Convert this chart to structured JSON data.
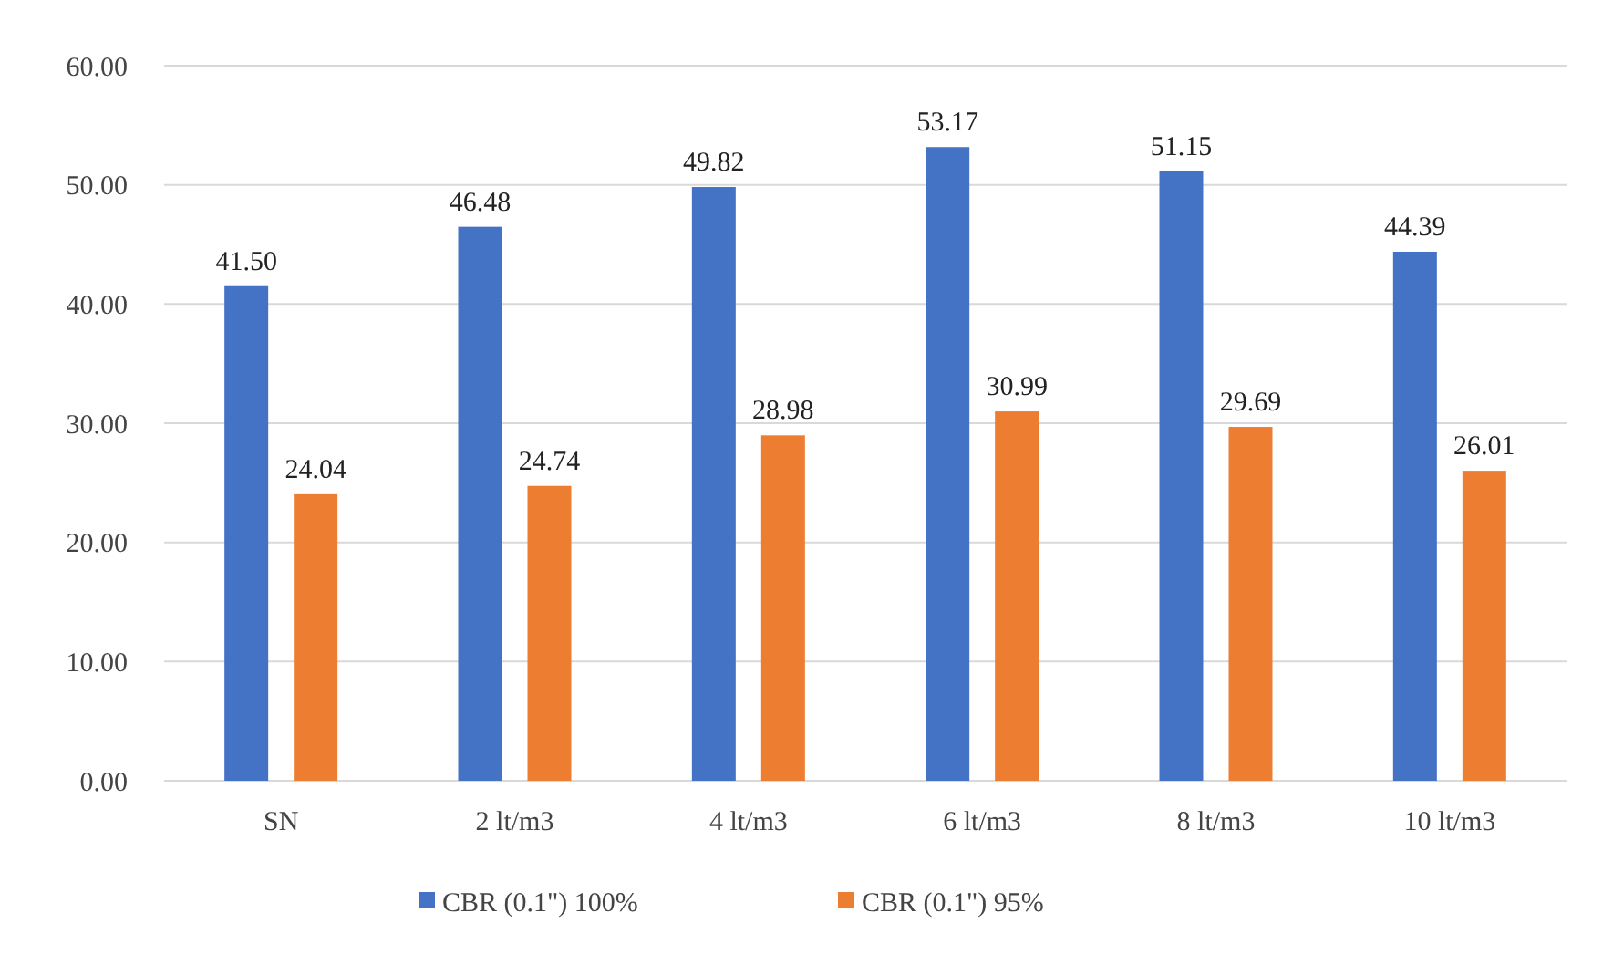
{
  "chart_data": {
    "type": "bar",
    "categories": [
      "SN",
      "2 lt/m3",
      "4 lt/m3",
      "6 lt/m3",
      "8 lt/m3",
      "10 lt/m3"
    ],
    "series": [
      {
        "name": "CBR (0.1\") 100%",
        "color": "#4472c4",
        "values": [
          41.5,
          46.48,
          49.82,
          53.17,
          51.15,
          44.39
        ],
        "value_labels": [
          "41.50",
          "46.48",
          "49.82",
          "53.17",
          "51.15",
          "44.39"
        ]
      },
      {
        "name": "CBR (0.1\") 95%",
        "color": "#ed7d31",
        "values": [
          24.04,
          24.74,
          28.98,
          30.99,
          29.69,
          26.01
        ],
        "value_labels": [
          "24.04",
          "24.74",
          "28.98",
          "30.99",
          "29.69",
          "26.01"
        ]
      }
    ],
    "ylim": [
      0,
      60
    ],
    "yticks": [
      {
        "value": 0,
        "label": "0.00"
      },
      {
        "value": 10,
        "label": "10.00"
      },
      {
        "value": 20,
        "label": "20.00"
      },
      {
        "value": 30,
        "label": "30.00"
      },
      {
        "value": 40,
        "label": "40.00"
      },
      {
        "value": 50,
        "label": "50.00"
      },
      {
        "value": 60,
        "label": "60.00"
      }
    ],
    "grid": "y",
    "legend": "bottom"
  }
}
